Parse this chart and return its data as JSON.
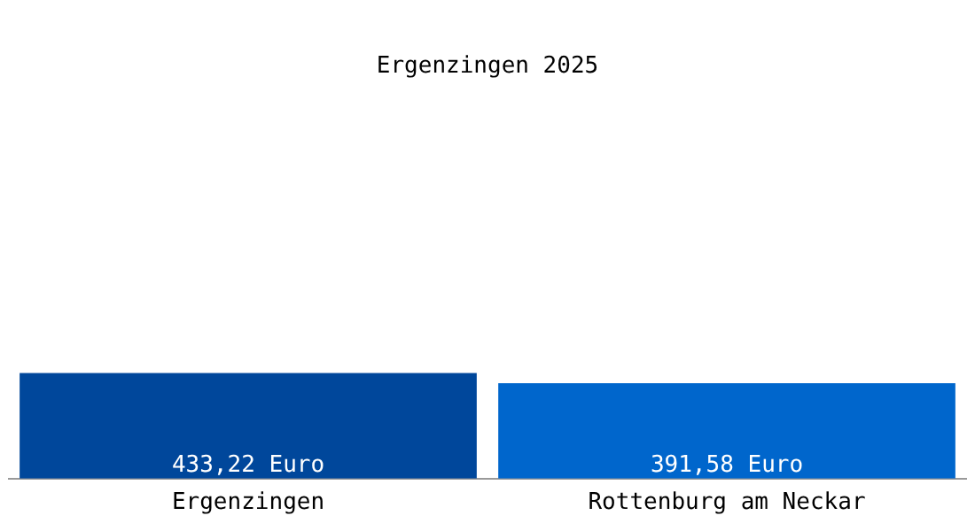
{
  "chart_data": {
    "type": "bar",
    "title": "Ergenzingen 2025",
    "categories": [
      "Ergenzingen",
      "Rottenburg am Neckar"
    ],
    "values": [
      433.22,
      391.58
    ],
    "colors": [
      "#00479b",
      "#0066cc"
    ],
    "value_labels": [
      "433,22 Euro",
      "391,58 Euro"
    ],
    "grid": false,
    "legend": false
  }
}
